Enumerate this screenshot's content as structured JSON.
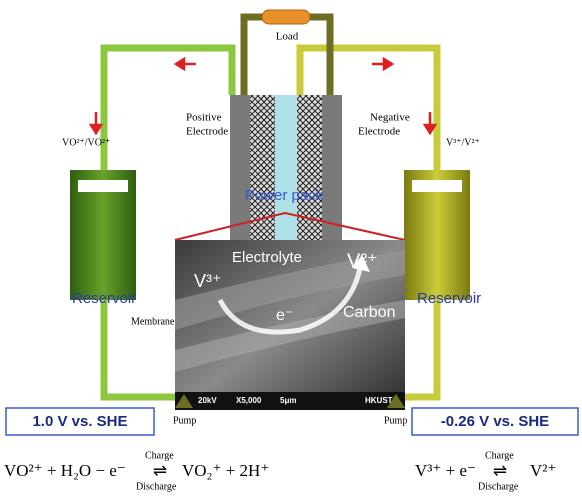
{
  "load": "Load",
  "positive_electrode": [
    "Positive",
    "Electrode"
  ],
  "negative_electrode": [
    "Negative",
    "Electrode"
  ],
  "left_couple": "VO²⁺/VO²⁺",
  "right_couple": "V³⁺/V²⁺",
  "power_pack": "Power pack",
  "reservoirs": [
    "Reservoir",
    "Reservoir"
  ],
  "membrane": "Membrane",
  "sem": {
    "electrolyte": "Electrolyte",
    "v2": "V²⁺",
    "v3": "V³⁺",
    "electron": "e⁻",
    "carbon": "Carbon",
    "scale_bar": [
      "20kV",
      "X5,000",
      "5μm",
      "HKUST"
    ]
  },
  "pumps": [
    "Pump",
    "Pump"
  ],
  "potentials": [
    "1.0 V vs. SHE",
    "-0.26 V vs. SHE"
  ],
  "equations": [
    {
      "left": "VO²⁺ + H₂O − e⁻",
      "arrow": "⇌",
      "charge": "Charge",
      "discharge": "Discharge",
      "right": "VO₂⁺ + 2H⁺"
    },
    {
      "left": "V³⁺ + e⁻",
      "arrow": "⇌",
      "charge": "Charge",
      "discharge": "Discharge",
      "right": "V²⁺"
    }
  ]
}
